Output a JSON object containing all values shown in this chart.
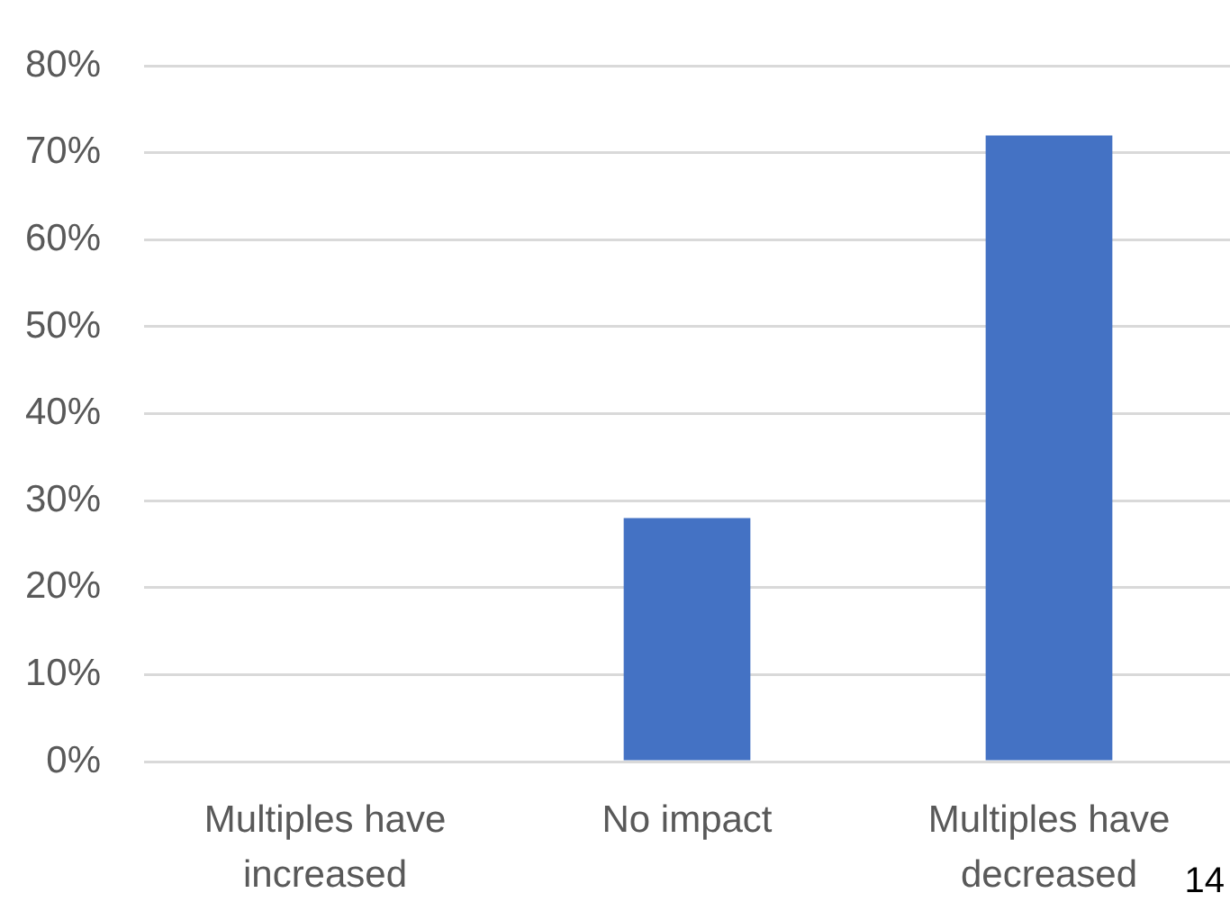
{
  "chart_data": {
    "type": "bar",
    "categories": [
      "Multiples have increased",
      "No impact",
      "Multiples have decreased"
    ],
    "values": [
      0,
      28,
      72
    ],
    "color": "#4472c4",
    "ylim": [
      0,
      80
    ],
    "yticks": [
      {
        "value": 0,
        "label": "0%"
      },
      {
        "value": 10,
        "label": "10%"
      },
      {
        "value": 20,
        "label": "20%"
      },
      {
        "value": 30,
        "label": "30%"
      },
      {
        "value": 40,
        "label": "40%"
      },
      {
        "value": 50,
        "label": "50%"
      },
      {
        "value": 60,
        "label": "60%"
      },
      {
        "value": 70,
        "label": "70%"
      },
      {
        "value": 80,
        "label": "80%"
      }
    ],
    "grid": "y",
    "annotations": [
      "14"
    ]
  }
}
